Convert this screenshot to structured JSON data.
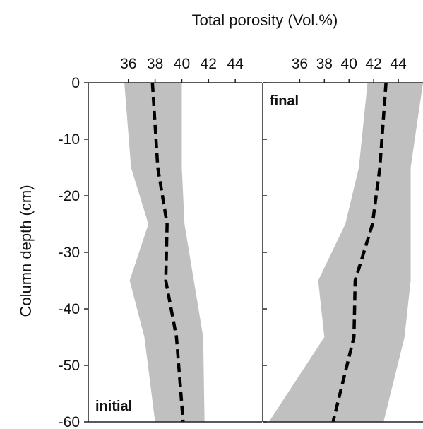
{
  "chart_data": {
    "type": "line",
    "title": "Total porosity (Vol.%)",
    "ylabel": "Column depth (cm)",
    "xlabel": "",
    "xlim": [
      33,
      46
    ],
    "ylim": [
      -60,
      0
    ],
    "x_ticks": [
      "36",
      "38",
      "40",
      "42",
      "44"
    ],
    "y_ticks": [
      "0",
      "-10",
      "-20",
      "-30",
      "-40",
      "-50",
      "-60"
    ],
    "grid": false,
    "panels": [
      {
        "label": "initial",
        "label_position": "bottom-left",
        "depth": [
          0,
          -15,
          -25,
          -35,
          -45,
          -60
        ],
        "mean": [
          37.8,
          38.2,
          38.9,
          38.8,
          39.6,
          40.1
        ],
        "lower": [
          35.7,
          36.2,
          37.5,
          36.1,
          37.2,
          38.0
        ],
        "upper": [
          40.0,
          40.0,
          40.2,
          40.9,
          41.6,
          41.7
        ]
      },
      {
        "label": "final",
        "label_position": "top-left",
        "depth": [
          0,
          -15,
          -25,
          -35,
          -45,
          -60
        ],
        "mean": [
          43.0,
          42.5,
          41.9,
          40.5,
          40.4,
          38.7
        ],
        "lower": [
          41.5,
          40.8,
          39.7,
          37.5,
          38.0,
          33.5
        ],
        "upper": [
          46.0,
          45.0,
          45.0,
          45.0,
          44.5,
          42.8
        ]
      }
    ]
  }
}
